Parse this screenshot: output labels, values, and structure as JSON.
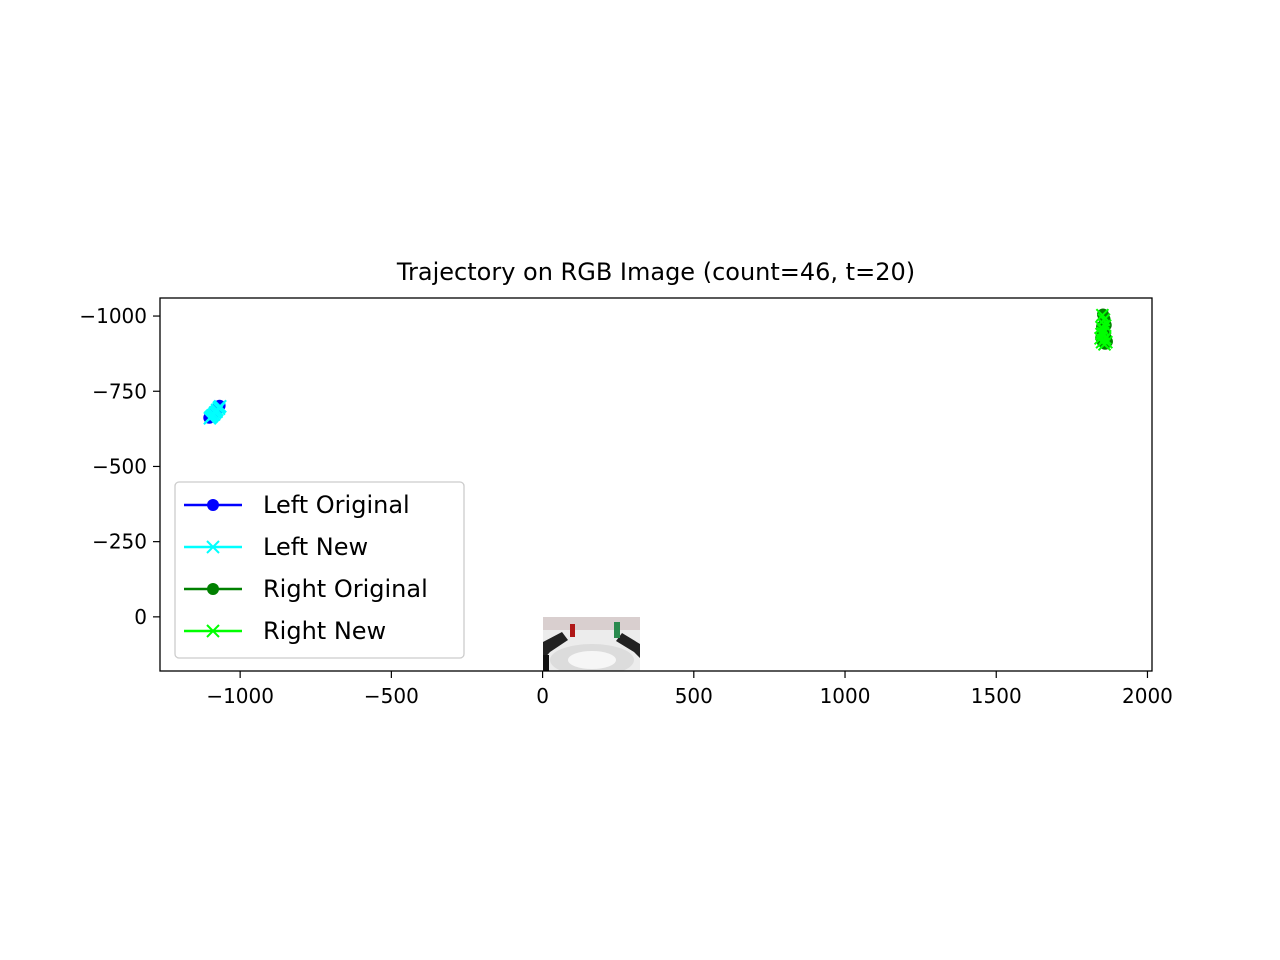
{
  "chart_data": {
    "type": "line",
    "title": "Trajectory on RGB Image (count=46, t=20)",
    "xlabel": "",
    "ylabel": "",
    "xlim": [
      -1265,
      2015
    ],
    "ylim": [
      180,
      -1060
    ],
    "y_inverted": true,
    "grid": false,
    "legend_position": "lower left",
    "x_ticks": [
      -1000,
      -500,
      0,
      500,
      1000,
      1500,
      2000
    ],
    "x_tick_labels": [
      "−1000",
      "−500",
      "0",
      "500",
      "1000",
      "1500",
      "2000"
    ],
    "y_ticks": [
      -1000,
      -750,
      -500,
      -250,
      0
    ],
    "y_tick_labels": [
      "−1000",
      "−750",
      "−500",
      "−250",
      "0"
    ],
    "background_image": {
      "extent_x": [
        0,
        320
      ],
      "extent_y": [
        0,
        180
      ]
    },
    "series": [
      {
        "name": "Left Original",
        "color": "#0000ff",
        "marker": "o",
        "x": [
          -1100,
          -1093,
          -1085,
          -1078,
          -1072,
          -1068,
          -1072,
          -1080,
          -1088,
          -1096,
          -1102,
          -1098
        ],
        "y": [
          -665,
          -672,
          -681,
          -690,
          -698,
          -702,
          -694,
          -684,
          -675,
          -668,
          -662,
          -667
        ]
      },
      {
        "name": "Left New",
        "color": "#00ffff",
        "marker": "x",
        "x": [
          -1098,
          -1091,
          -1083,
          -1076,
          -1070,
          -1066,
          -1070,
          -1078,
          -1086,
          -1094,
          -1100,
          -1096
        ],
        "y": [
          -663,
          -670,
          -679,
          -688,
          -696,
          -700,
          -692,
          -682,
          -673,
          -666,
          -660,
          -665
        ]
      },
      {
        "name": "Right Original",
        "color": "#008000",
        "marker": "o",
        "x": [
          1853,
          1858,
          1862,
          1856,
          1850,
          1847,
          1852,
          1860,
          1866,
          1862,
          1855,
          1850
        ],
        "y": [
          -1005,
          -990,
          -970,
          -955,
          -942,
          -928,
          -915,
          -908,
          -915,
          -928,
          -945,
          -965
        ]
      },
      {
        "name": "Right New",
        "color": "#00ff00",
        "marker": "x",
        "x": [
          1851,
          1856,
          1860,
          1854,
          1848,
          1845,
          1850,
          1858,
          1864,
          1860,
          1853,
          1848
        ],
        "y": [
          -1003,
          -988,
          -968,
          -953,
          -940,
          -926,
          -913,
          -906,
          -913,
          -926,
          -943,
          -963
        ]
      }
    ]
  }
}
